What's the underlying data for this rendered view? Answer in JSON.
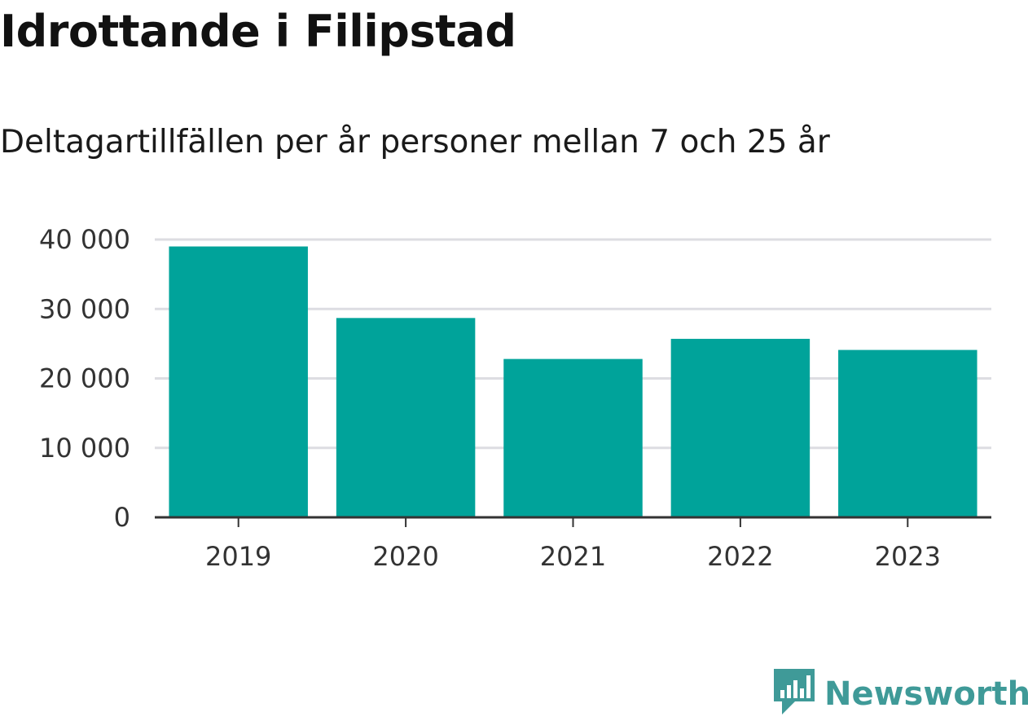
{
  "header": {
    "title": "Idrottande i Filipstad",
    "subtitle": "Deltagartillfällen per år personer mellan 7 och 25 år"
  },
  "brand": {
    "name": "Newsworthy",
    "icon": "newsworthy-logo-icon",
    "color": "#3f9a98"
  },
  "colors": {
    "bar": "#00a39a",
    "grid": "#dddde2",
    "axis": "#333333"
  },
  "chart_data": {
    "type": "bar",
    "title": "Idrottande i Filipstad",
    "subtitle": "Deltagartillfällen per år personer mellan 7 och 25 år",
    "categories": [
      "2019",
      "2020",
      "2021",
      "2022",
      "2023"
    ],
    "values": [
      39000,
      28700,
      22800,
      25700,
      24100
    ],
    "ylim": [
      0,
      40000
    ],
    "yticks": [
      0,
      10000,
      20000,
      30000,
      40000
    ],
    "ytick_labels": [
      "0",
      "10 000",
      "20 000",
      "30 000",
      "40 000"
    ],
    "xlabel": "",
    "ylabel": "",
    "grid": true,
    "legend": "none"
  }
}
